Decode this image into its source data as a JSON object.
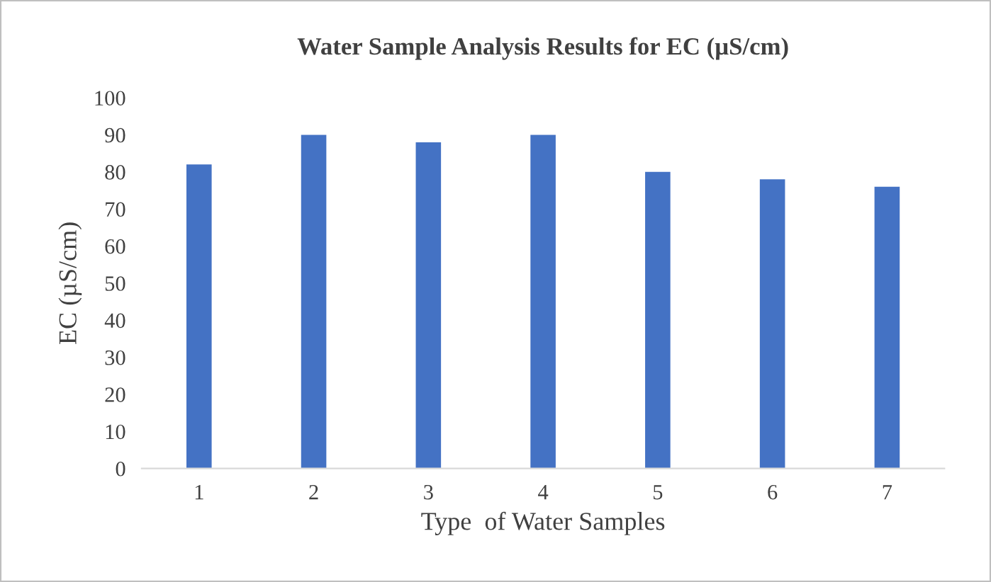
{
  "chart_data": {
    "type": "bar",
    "title": "Water Sample Analysis Results for EC (µS/cm)",
    "xlabel": "Type  of Water Samples",
    "ylabel": "EC (µS/cm)",
    "categories": [
      "1",
      "2",
      "3",
      "4",
      "5",
      "6",
      "7"
    ],
    "values": [
      82,
      90,
      88,
      90,
      80,
      78,
      76
    ],
    "color": "#4472c4",
    "ylim": [
      0,
      100
    ],
    "yticks": [
      0,
      10,
      20,
      30,
      40,
      50,
      60,
      70,
      80,
      90,
      100
    ],
    "grid": false,
    "legend": false
  }
}
